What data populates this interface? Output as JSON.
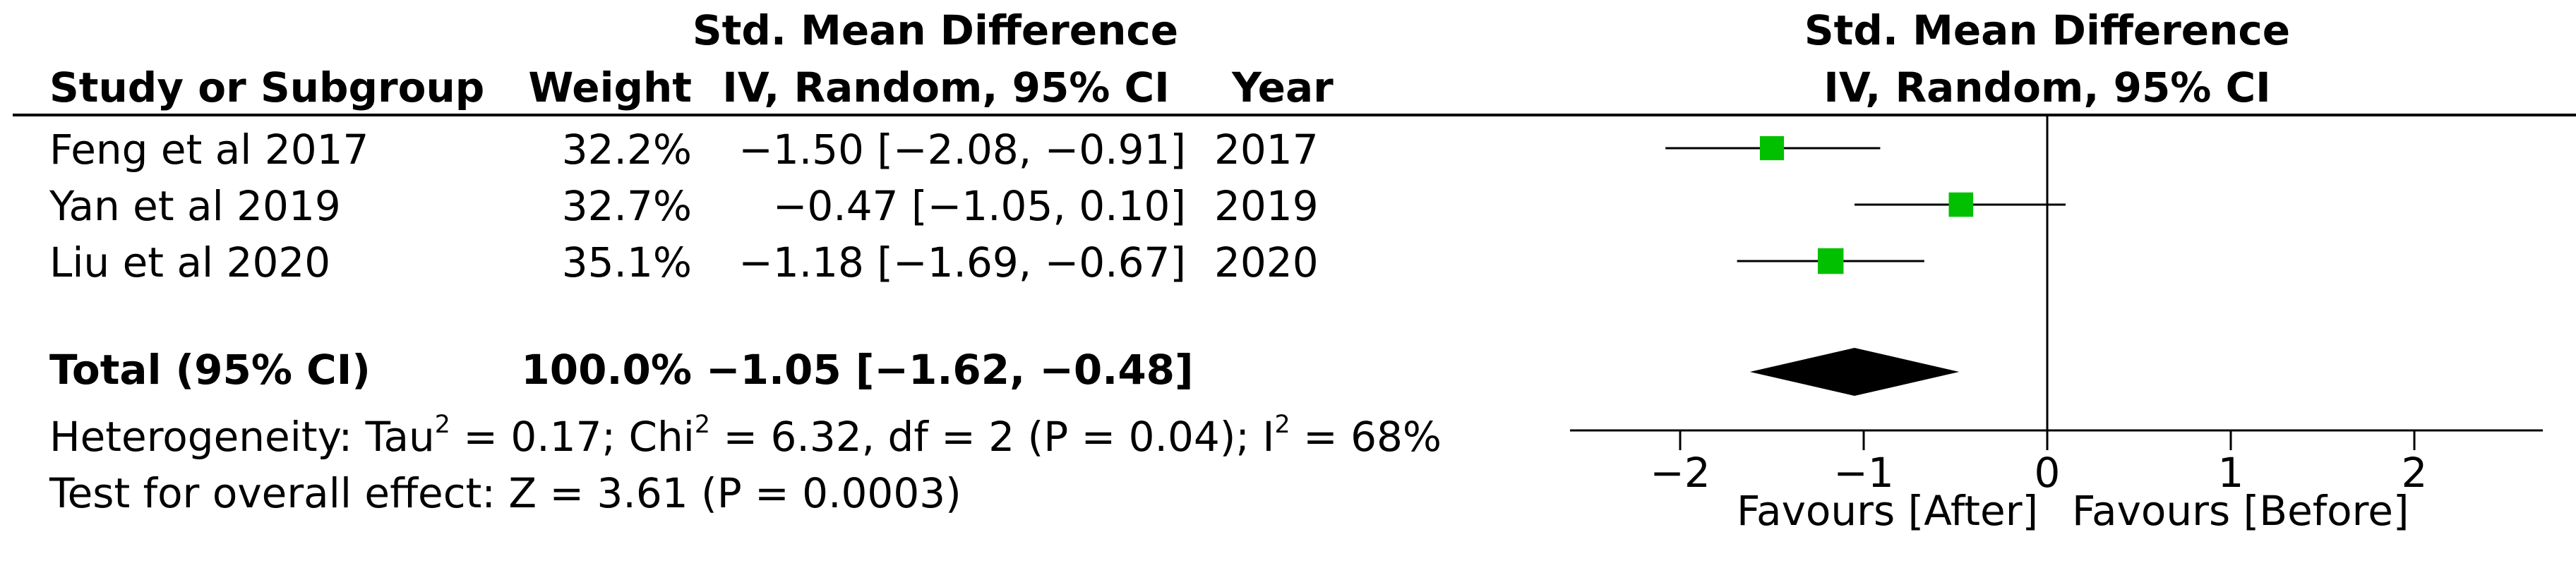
{
  "header": {
    "col_study": "Study or Subgroup",
    "col_weight": "Weight",
    "col_effect_line1": "Std. Mean Difference",
    "col_effect_line2": "IV, Random, 95% CI",
    "col_year": "Year",
    "plot_title_line1": "Std. Mean Difference",
    "plot_title_line2": "IV, Random, 95% CI"
  },
  "studies": [
    {
      "name": "Feng et al 2017",
      "weight": "32.2%",
      "ci_text": "−1.50 [−2.08, −0.91]",
      "year": "2017"
    },
    {
      "name": "Yan et al 2019",
      "weight": "32.7%",
      "ci_text": "−0.47 [−1.05, 0.10]",
      "year": "2019"
    },
    {
      "name": "Liu et al 2020",
      "weight": "35.1%",
      "ci_text": "−1.18 [−1.69, −0.67]",
      "year": "2020"
    }
  ],
  "total": {
    "label": "Total (95% CI)",
    "weight": "100.0%",
    "ci_text": "−1.05 [−1.62, −0.48]"
  },
  "heterogeneity": {
    "prefix": "Heterogeneity: Tau",
    "tau_sup": "2",
    "tau_val": " = 0.17; Chi",
    "chi_sup": "2",
    "chi_val": " = 6.32, df = 2 (P = 0.04); I",
    "i_sup": "2",
    "i_val": " = 68%"
  },
  "overall_effect": "Test for overall effect: Z = 3.61 (P = 0.0003)",
  "favours": {
    "left": "Favours [After]",
    "right": "Favours [Before]"
  },
  "colors": {
    "study_marker": "#00c000",
    "diamond": "#000000",
    "lines": "#000000"
  },
  "chart_data": {
    "type": "forest",
    "xlim": [
      -2.6,
      2.7
    ],
    "ticks": [
      -2,
      -1,
      0,
      1,
      2
    ],
    "tick_labels": [
      "−2",
      "−1",
      "0",
      "1",
      "2"
    ],
    "null_line": 0,
    "xlabel_left": "Favours [After]",
    "xlabel_right": "Favours [Before]",
    "studies": [
      {
        "name": "Feng et al 2017",
        "estimate": -1.5,
        "lower": -2.08,
        "upper": -0.91,
        "weight": 32.2
      },
      {
        "name": "Yan et al 2019",
        "estimate": -0.47,
        "lower": -1.05,
        "upper": 0.1,
        "weight": 32.7
      },
      {
        "name": "Liu et al 2020",
        "estimate": -1.18,
        "lower": -1.69,
        "upper": -0.67,
        "weight": 35.1
      }
    ],
    "pooled": {
      "estimate": -1.05,
      "lower": -1.62,
      "upper": -0.48
    }
  }
}
